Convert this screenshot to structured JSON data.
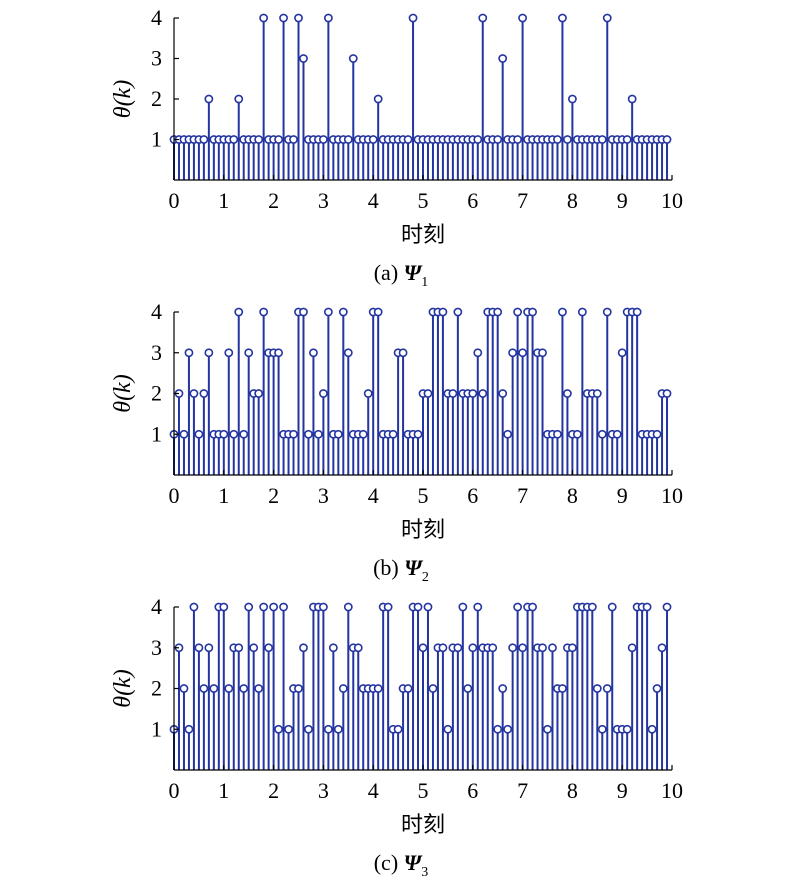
{
  "chart_data": [
    {
      "type": "stem",
      "id": "a",
      "caption_prefix": "(a) ",
      "caption_symbol": "Ψ",
      "caption_sub": "1",
      "xlabel": "时刻",
      "ylabel": "θ(k)",
      "xlim": [
        0,
        10
      ],
      "ylim": [
        0,
        4
      ],
      "xticks": [
        "0",
        "1",
        "2",
        "3",
        "4",
        "5",
        "6",
        "7",
        "8",
        "9",
        "10"
      ],
      "yticks": [
        "1",
        "2",
        "3",
        "4"
      ],
      "grid": false,
      "x_step": 0.1,
      "values": [
        1,
        1,
        1,
        1,
        1,
        1,
        1,
        2,
        1,
        1,
        1,
        1,
        1,
        2,
        1,
        1,
        1,
        1,
        4,
        1,
        1,
        1,
        4,
        1,
        1,
        4,
        3,
        1,
        1,
        1,
        1,
        4,
        1,
        1,
        1,
        1,
        3,
        1,
        1,
        1,
        1,
        2,
        1,
        1,
        1,
        1,
        1,
        1,
        4,
        1,
        1,
        1,
        1,
        1,
        1,
        1,
        1,
        1,
        1,
        1,
        1,
        1,
        4,
        1,
        1,
        1,
        3,
        1,
        1,
        1,
        4,
        1,
        1,
        1,
        1,
        1,
        1,
        1,
        4,
        1,
        2,
        1,
        1,
        1,
        1,
        1,
        1,
        4,
        1,
        1,
        1,
        1,
        2,
        1,
        1,
        1,
        1,
        1,
        1,
        1
      ]
    },
    {
      "type": "stem",
      "id": "b",
      "caption_prefix": "(b) ",
      "caption_symbol": "Ψ",
      "caption_sub": "2",
      "xlabel": "时刻",
      "ylabel": "θ(k)",
      "xlim": [
        0,
        10
      ],
      "ylim": [
        0,
        4
      ],
      "xticks": [
        "0",
        "1",
        "2",
        "3",
        "4",
        "5",
        "6",
        "7",
        "8",
        "9",
        "10"
      ],
      "yticks": [
        "1",
        "2",
        "3",
        "4"
      ],
      "grid": false,
      "x_step": 0.1,
      "values": [
        1,
        2,
        1,
        3,
        2,
        1,
        2,
        3,
        1,
        1,
        1,
        3,
        1,
        4,
        1,
        3,
        2,
        2,
        4,
        3,
        3,
        3,
        1,
        1,
        1,
        4,
        4,
        1,
        3,
        1,
        2,
        4,
        1,
        1,
        4,
        3,
        1,
        1,
        1,
        2,
        4,
        4,
        1,
        1,
        1,
        3,
        3,
        1,
        1,
        1,
        2,
        2,
        4,
        4,
        4,
        2,
        2,
        4,
        2,
        2,
        2,
        3,
        2,
        4,
        4,
        4,
        2,
        1,
        3,
        4,
        3,
        4,
        4,
        3,
        3,
        1,
        1,
        1,
        4,
        2,
        1,
        1,
        4,
        2,
        2,
        2,
        1,
        4,
        1,
        1,
        3,
        4,
        4,
        4,
        1,
        1,
        1,
        1,
        2,
        2
      ]
    },
    {
      "type": "stem",
      "id": "c",
      "caption_prefix": "(c) ",
      "caption_symbol": "Ψ",
      "caption_sub": "3",
      "xlabel": "时刻",
      "ylabel": "θ(k)",
      "xlim": [
        0,
        10
      ],
      "ylim": [
        0,
        4
      ],
      "xticks": [
        "0",
        "1",
        "2",
        "3",
        "4",
        "5",
        "6",
        "7",
        "8",
        "9",
        "10"
      ],
      "yticks": [
        "1",
        "2",
        "3",
        "4"
      ],
      "grid": false,
      "x_step": 0.1,
      "values": [
        1,
        3,
        2,
        1,
        4,
        3,
        2,
        3,
        2,
        4,
        4,
        2,
        3,
        3,
        2,
        4,
        3,
        2,
        4,
        3,
        4,
        1,
        4,
        1,
        2,
        2,
        3,
        1,
        4,
        4,
        4,
        1,
        3,
        1,
        2,
        4,
        3,
        3,
        2,
        2,
        2,
        2,
        4,
        4,
        1,
        1,
        2,
        2,
        4,
        4,
        3,
        4,
        2,
        3,
        3,
        1,
        3,
        3,
        4,
        2,
        3,
        4,
        3,
        3,
        3,
        1,
        2,
        1,
        3,
        4,
        3,
        4,
        4,
        3,
        3,
        1,
        3,
        2,
        2,
        3,
        3,
        4,
        4,
        4,
        4,
        2,
        1,
        2,
        4,
        1,
        1,
        1,
        3,
        4,
        4,
        4,
        1,
        2,
        3,
        4
      ]
    }
  ],
  "colors": {
    "stem": "#2434a0",
    "axis": "#000000"
  }
}
